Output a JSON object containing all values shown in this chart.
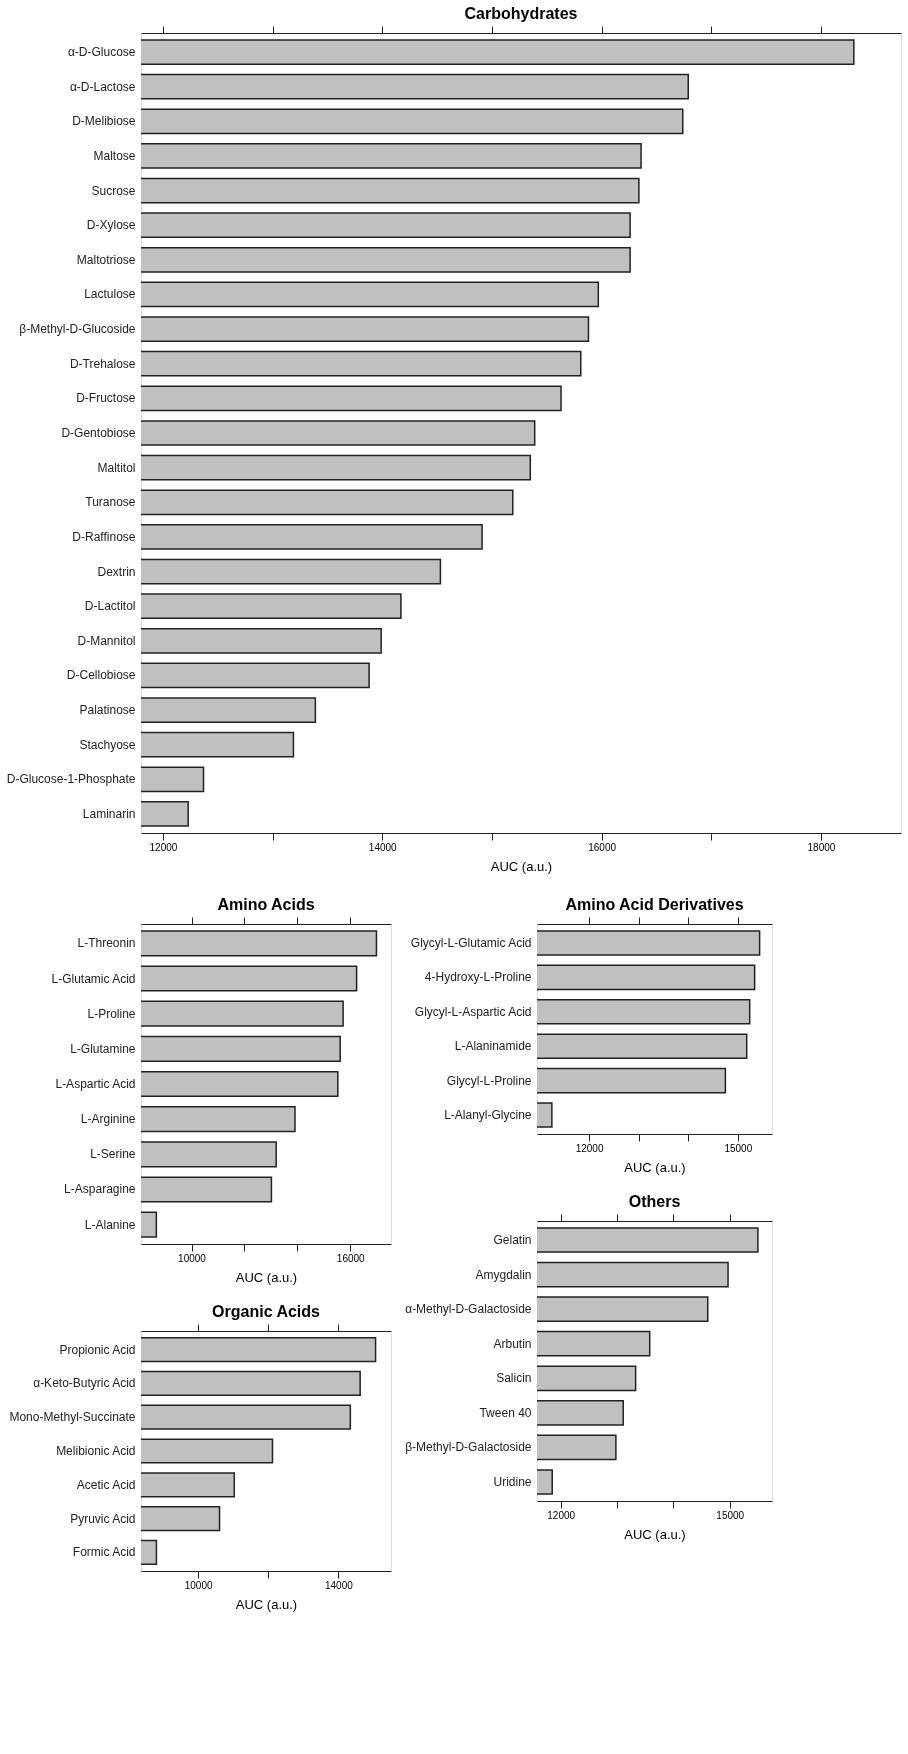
{
  "chart_data": [
    {
      "type": "bar",
      "orientation": "horizontal",
      "title": "Carbohydrates",
      "xlabel": "AUC (a.u.)",
      "color": "#c0c0c0",
      "categories": [
        "α-D-Glucose",
        "α-D-Lactose",
        "D-Melibiose",
        "Maltose",
        "Sucrose",
        "D-Xylose",
        "Maltotriose",
        "Lactulose",
        "β-Methyl-D-Glucoside",
        "D-Trehalose",
        "D-Fructose",
        "D-Gentobiose",
        "Maltitol",
        "Turanose",
        "D-Raffinose",
        "Dextrin",
        "D-Lactitol",
        "D-Mannitol",
        "D-Cellobiose",
        "Palatinose",
        "Stachyose",
        "D-Glucose-1-Phosphate",
        "Laminarin"
      ],
      "values": [
        18300,
        16790,
        16740,
        16360,
        16340,
        16260,
        16260,
        15970,
        15880,
        15810,
        15630,
        15390,
        15350,
        15190,
        14910,
        14530,
        14170,
        13990,
        13880,
        13390,
        13190,
        12370,
        12230
      ],
      "xlim": [
        11800,
        18730
      ],
      "xticks": [
        12000,
        {
          "value": 13000,
          "label": null
        },
        14000,
        {
          "value": 15000,
          "label": null
        },
        16000,
        {
          "value": 17000,
          "label": null
        },
        18000
      ]
    },
    {
      "type": "bar",
      "orientation": "horizontal",
      "title": "Amino Acids",
      "xlabel": "AUC (a.u.)",
      "color": "#c0c0c0",
      "categories": [
        "L-Threonin",
        "L-Glutamic Acid",
        "L-Proline",
        "L-Glutamine",
        "L-Aspartic Acid",
        "L-Arginine",
        "L-Serine",
        "L-Asparagine",
        "L-Alanine"
      ],
      "values": [
        16990,
        16240,
        15730,
        15620,
        15530,
        13910,
        13200,
        13020,
        8670
      ],
      "xlim": [
        8090,
        17540
      ],
      "xticks": [
        10000,
        {
          "value": 12000,
          "label": null
        },
        {
          "value": 14000,
          "label": null
        },
        16000
      ]
    },
    {
      "type": "bar",
      "orientation": "horizontal",
      "title": "Organic Acids",
      "xlabel": "AUC (a.u.)",
      "color": "#c0c0c0",
      "categories": [
        "Propionic Acid",
        "α-Keto-Butyric Acid",
        "Mono-Methyl-Succinate",
        "Melibionic Acid",
        "Acetic Acid",
        "Pyruvic Acid",
        "Formic Acid"
      ],
      "values": [
        15060,
        14620,
        14340,
        12120,
        11030,
        10610,
        8810
      ],
      "xlim": [
        8370,
        15500
      ],
      "xticks": [
        10000,
        {
          "value": 12000,
          "label": null
        },
        14000
      ]
    },
    {
      "type": "bar",
      "orientation": "horizontal",
      "title": "Amino Acid Derivatives",
      "xlabel": "AUC (a.u.)",
      "color": "#c0c0c0",
      "categories": [
        "Glycyl-L-Glutamic Acid",
        "4-Hydroxy-L-Proline",
        "Glycyl-L-Aspartic Acid",
        "L-Alaninamide",
        "Glycyl-L-Proline",
        "L-Alanyl-Glycine"
      ],
      "values": [
        15440,
        15340,
        15240,
        15180,
        14750,
        11250
      ],
      "xlim": [
        10950,
        15690
      ],
      "xticks": [
        12000,
        {
          "value": 13000,
          "label": null
        },
        {
          "value": 14000,
          "label": null
        },
        15000
      ]
    },
    {
      "type": "bar",
      "orientation": "horizontal",
      "title": "Others",
      "xlabel": "AUC (a.u.)",
      "color": "#c0c0c0",
      "categories": [
        "Gelatin",
        "Amygdalin",
        "α-Methyl-D-Galactoside",
        "Arbutin",
        "Salicin",
        "Tween 40",
        "β-Methyl-D-Galactoside",
        "Uridine"
      ],
      "values": [
        15500,
        14970,
        14610,
        13580,
        13330,
        13110,
        12980,
        11850
      ],
      "xlim": [
        11580,
        15750
      ],
      "xticks": [
        12000,
        {
          "value": 13000,
          "label": null
        },
        {
          "value": 14000,
          "label": null
        },
        15000
      ]
    }
  ]
}
